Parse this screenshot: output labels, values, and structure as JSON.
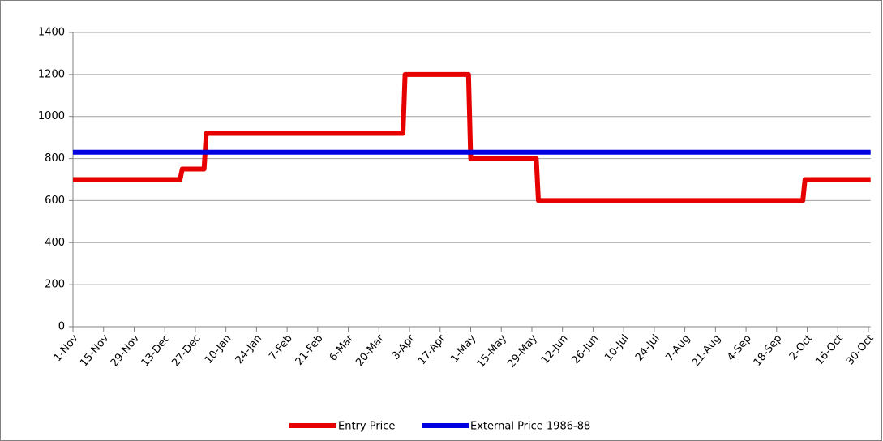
{
  "chart_data": {
    "type": "line",
    "categories": [
      "1-Nov",
      "15-Nov",
      "29-Nov",
      "13-Dec",
      "27-Dec",
      "10-Jan",
      "24-Jan",
      "7-Feb",
      "21-Feb",
      "6-Mar",
      "20-Mar",
      "3-Apr",
      "17-Apr",
      "1-May",
      "15-May",
      "29-May",
      "12-Jun",
      "26-Jun",
      "10-Jul",
      "24-Jul",
      "7-Aug",
      "21-Aug",
      "4-Sep",
      "18-Sep",
      "2-Oct",
      "16-Oct",
      "30-Oct"
    ],
    "series": [
      {
        "name": "Entry Price",
        "color": "#e60000",
        "x": [
          "1-Nov",
          "20-Dec",
          "21-Dec",
          "31-Dec",
          "1-Jan",
          "31-Mar",
          "1-Apr",
          "30-Apr",
          "1-May",
          "31-May",
          "1-Jun",
          "30-Sep",
          "1-Oct",
          "31-Oct"
        ],
        "values": [
          700,
          700,
          750,
          750,
          920,
          920,
          1200,
          1200,
          800,
          800,
          600,
          600,
          700,
          700
        ]
      },
      {
        "name": "External Price 1986-88",
        "color": "#0000e0",
        "x": [
          "1-Nov",
          "31-Oct"
        ],
        "values": [
          830,
          830
        ]
      }
    ],
    "ylim": [
      0,
      1400
    ],
    "yticks": [
      0,
      200,
      400,
      600,
      800,
      1000,
      1200,
      1400
    ],
    "grid": true,
    "legend": "bottom"
  }
}
